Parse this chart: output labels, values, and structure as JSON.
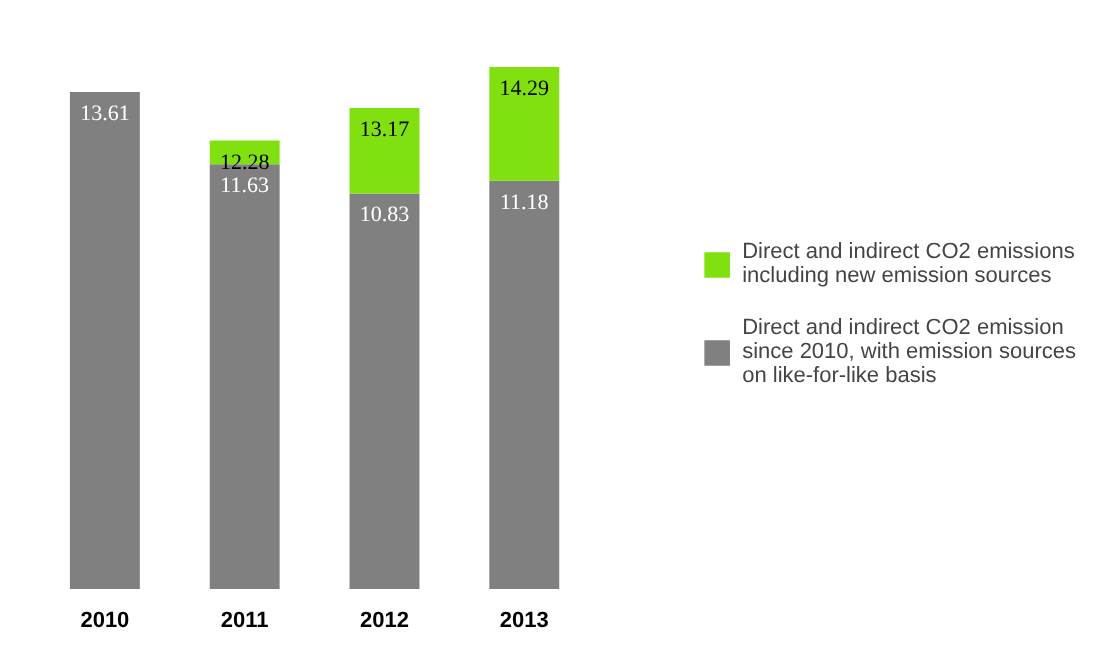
{
  "chart_data": {
    "type": "bar",
    "stacked": true,
    "categories": [
      "2010",
      "2011",
      "2012",
      "2013"
    ],
    "series": [
      {
        "name": "Direct and indirect CO2 emission since 2010, with emission sources on like-for-like basis",
        "color": "#808080",
        "values": [
          13.61,
          11.63,
          10.83,
          11.18
        ],
        "value_labels": [
          "13.61",
          "11.63",
          "10.83",
          "11.18"
        ]
      },
      {
        "name": "Direct and indirect CO2 emissions including new emission sources",
        "color": "#80e010",
        "values": [
          null,
          0.65,
          2.34,
          3.11
        ]
      }
    ],
    "totals": [
      null,
      "12.28",
      "13.17",
      "14.29"
    ],
    "legend": "right",
    "grid": false,
    "tick_labels": "x"
  }
}
